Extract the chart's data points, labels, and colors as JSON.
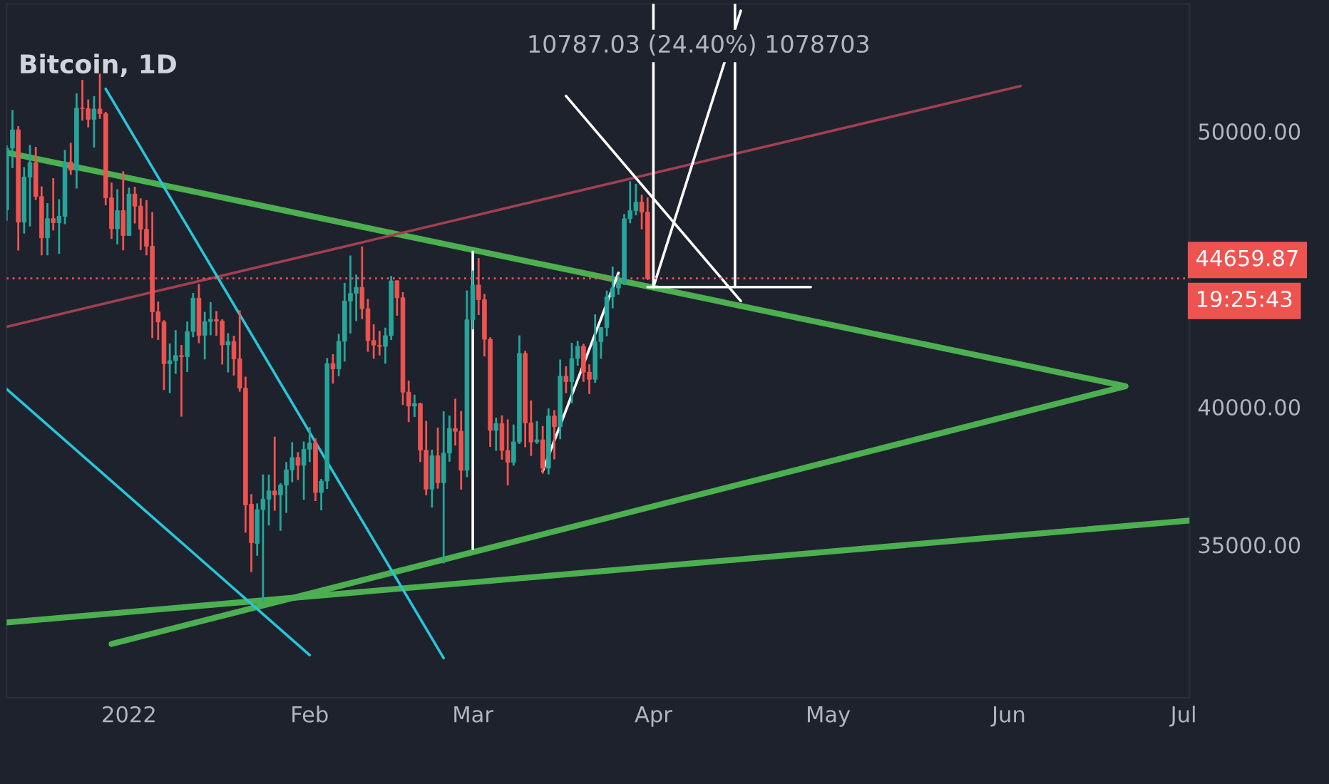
{
  "chart_data": {
    "type": "candlestick",
    "title": "Bitcoin, 1D",
    "x": [
      "2021-12-11",
      "2021-12-12",
      "2021-12-13",
      "2021-12-14",
      "2021-12-15",
      "2021-12-16",
      "2021-12-17",
      "2021-12-18",
      "2021-12-19",
      "2021-12-20",
      "2021-12-21",
      "2021-12-22",
      "2021-12-23",
      "2021-12-24",
      "2021-12-25",
      "2021-12-26",
      "2021-12-27",
      "2021-12-28",
      "2021-12-29",
      "2021-12-30",
      "2021-12-31",
      "2022-01-01",
      "2022-01-02",
      "2022-01-03",
      "2022-01-04",
      "2022-01-05",
      "2022-01-06",
      "2022-01-07",
      "2022-01-08",
      "2022-01-09",
      "2022-01-10",
      "2022-01-11",
      "2022-01-12",
      "2022-01-13",
      "2022-01-14",
      "2022-01-15",
      "2022-01-16",
      "2022-01-17",
      "2022-01-18",
      "2022-01-19",
      "2022-01-20",
      "2022-01-21",
      "2022-01-22",
      "2022-01-23",
      "2022-01-24",
      "2022-01-25",
      "2022-01-26",
      "2022-01-27",
      "2022-01-28",
      "2022-01-29",
      "2022-01-30",
      "2022-01-31",
      "2022-02-01",
      "2022-02-02",
      "2022-02-03",
      "2022-02-04",
      "2022-02-05",
      "2022-02-06",
      "2022-02-07",
      "2022-02-08",
      "2022-02-09",
      "2022-02-10",
      "2022-02-11",
      "2022-02-12",
      "2022-02-13",
      "2022-02-14",
      "2022-02-15",
      "2022-02-16",
      "2022-02-17",
      "2022-02-18",
      "2022-02-19",
      "2022-02-20",
      "2022-02-21",
      "2022-02-22",
      "2022-02-23",
      "2022-02-24",
      "2022-02-25",
      "2022-02-26",
      "2022-02-27",
      "2022-02-28",
      "2022-03-01",
      "2022-03-02",
      "2022-03-03",
      "2022-03-04",
      "2022-03-05",
      "2022-03-06",
      "2022-03-07",
      "2022-03-08",
      "2022-03-09",
      "2022-03-10",
      "2022-03-11",
      "2022-03-12",
      "2022-03-13",
      "2022-03-14",
      "2022-03-15",
      "2022-03-16",
      "2022-03-17",
      "2022-03-18",
      "2022-03-19",
      "2022-03-20",
      "2022-03-21",
      "2022-03-22",
      "2022-03-23",
      "2022-03-24",
      "2022-03-25",
      "2022-03-26",
      "2022-03-27",
      "2022-03-28",
      "2022-03-29",
      "2022-03-30",
      "2022-03-31"
    ],
    "ohlc": [
      [
        47150,
        49485,
        46751,
        49389
      ],
      [
        49389,
        50775,
        48666,
        50053
      ],
      [
        50053,
        50189,
        45672,
        46702
      ],
      [
        46702,
        48700,
        46290,
        48343
      ],
      [
        48336,
        49500,
        46547,
        48864
      ],
      [
        48864,
        49436,
        47511,
        47632
      ],
      [
        47632,
        48004,
        45500,
        46131
      ],
      [
        46134,
        47392,
        45500,
        46834
      ],
      [
        46834,
        48300,
        46406,
        46681
      ],
      [
        46681,
        47537,
        45558,
        46914
      ],
      [
        46914,
        49328,
        46630,
        48889
      ],
      [
        48887,
        49576,
        48421,
        48588
      ],
      [
        48588,
        51375,
        47921,
        50838
      ],
      [
        50839,
        51869,
        50387,
        50821
      ],
      [
        50820,
        51156,
        50142,
        50429
      ],
      [
        50429,
        51281,
        49412,
        50809
      ],
      [
        50809,
        52088,
        50449,
        50640
      ],
      [
        50640,
        50704,
        47313,
        47588
      ],
      [
        47588,
        48139,
        46096,
        46464
      ],
      [
        46464,
        47900,
        45900,
        47120
      ],
      [
        47121,
        48548,
        45678,
        46216
      ],
      [
        46216,
        47954,
        46208,
        47722
      ],
      [
        47722,
        47990,
        46654,
        47286
      ],
      [
        47286,
        47570,
        45696,
        46446
      ],
      [
        46446,
        47505,
        45502,
        45832
      ],
      [
        45832,
        47070,
        42500,
        43451
      ],
      [
        43451,
        43816,
        42430,
        43082
      ],
      [
        43082,
        43145,
        40611,
        41566
      ],
      [
        41566,
        42300,
        40501,
        41679
      ],
      [
        41680,
        42786,
        41200,
        41864
      ],
      [
        41864,
        42248,
        39650,
        41822
      ],
      [
        41822,
        43100,
        41268,
        42736
      ],
      [
        42736,
        44135,
        42528,
        43946
      ],
      [
        43946,
        44460,
        42311,
        42592
      ],
      [
        42598,
        43448,
        41725,
        43099
      ],
      [
        43099,
        43800,
        42600,
        43177
      ],
      [
        43172,
        43475,
        42581,
        43113
      ],
      [
        43118,
        43180,
        41540,
        42250
      ],
      [
        42250,
        42676,
        41252,
        42375
      ],
      [
        42374,
        42584,
        41138,
        41744
      ],
      [
        41745,
        43505,
        40553,
        40680
      ],
      [
        40680,
        41100,
        35440,
        36445
      ],
      [
        36471,
        36835,
        34008,
        35071
      ],
      [
        35048,
        36500,
        34601,
        36276
      ],
      [
        36276,
        37550,
        32917,
        36654
      ],
      [
        36654,
        37545,
        35701,
        36954
      ],
      [
        36950,
        38919,
        36234,
        36809
      ],
      [
        36807,
        37234,
        35507,
        37160
      ],
      [
        37161,
        38000,
        36155,
        37716
      ],
      [
        37716,
        38720,
        37268,
        38166
      ],
      [
        38166,
        38359,
        37351,
        37881
      ],
      [
        37881,
        38744,
        36632,
        38466
      ],
      [
        38466,
        39265,
        38000,
        38694
      ],
      [
        38694,
        38855,
        36586,
        36896
      ],
      [
        36897,
        37387,
        36250,
        37311
      ],
      [
        37310,
        41772,
        37026,
        41574
      ],
      [
        41575,
        41913,
        40843,
        41382
      ],
      [
        41382,
        42656,
        41116,
        42380
      ],
      [
        42380,
        44500,
        41645,
        43840
      ],
      [
        43840,
        45492,
        42666,
        44118
      ],
      [
        44118,
        44799,
        43117,
        44338
      ],
      [
        44338,
        45821,
        43187,
        43565
      ],
      [
        43565,
        43920,
        42000,
        42407
      ],
      [
        42408,
        43000,
        41748,
        42244
      ],
      [
        42236,
        42760,
        41870,
        42197
      ],
      [
        42197,
        42876,
        41570,
        42586
      ],
      [
        42586,
        44751,
        42428,
        44575
      ],
      [
        44579,
        44585,
        43310,
        43961
      ],
      [
        43961,
        44164,
        40073,
        40538
      ],
      [
        40538,
        40959,
        39450,
        40030
      ],
      [
        40031,
        40444,
        39639,
        40122
      ],
      [
        40118,
        40150,
        38000,
        38431
      ],
      [
        38431,
        39494,
        36800,
        37017
      ],
      [
        37017,
        38450,
        36350,
        38230
      ],
      [
        38231,
        39249,
        37036,
        37250
      ],
      [
        37251,
        39843,
        34322,
        38327
      ],
      [
        38328,
        39683,
        38014,
        39219
      ],
      [
        39219,
        40300,
        38600,
        39116
      ],
      [
        39116,
        39855,
        37000,
        37700
      ],
      [
        37700,
        44225,
        37450,
        43160
      ],
      [
        43161,
        44950,
        42809,
        44421
      ],
      [
        44422,
        45400,
        43334,
        43892
      ],
      [
        43892,
        44102,
        41832,
        42455
      ],
      [
        42455,
        42527,
        38550,
        39148
      ],
      [
        39148,
        39613,
        38407,
        39398
      ],
      [
        39398,
        39693,
        38088,
        38420
      ],
      [
        38420,
        39547,
        37155,
        37988
      ],
      [
        37988,
        39362,
        37867,
        38731
      ],
      [
        38731,
        42594,
        38656,
        41941
      ],
      [
        41942,
        42039,
        38539,
        39422
      ],
      [
        39422,
        40236,
        38223,
        38730
      ],
      [
        38730,
        39486,
        38660,
        38807
      ],
      [
        38807,
        39310,
        37578,
        37777
      ],
      [
        37778,
        39947,
        37555,
        39671
      ],
      [
        39672,
        39887,
        38098,
        39280
      ],
      [
        39280,
        41718,
        38828,
        41114
      ],
      [
        41114,
        41478,
        40500,
        40917
      ],
      [
        40917,
        42325,
        40135,
        41757
      ],
      [
        41757,
        42400,
        41499,
        42201
      ],
      [
        42202,
        42296,
        40911,
        41262
      ],
      [
        41262,
        41544,
        40468,
        41002
      ],
      [
        41003,
        43361,
        40875,
        42364
      ],
      [
        42364,
        42893,
        41751,
        42882
      ],
      [
        42882,
        44220,
        42560,
        43991
      ],
      [
        43991,
        45094,
        43579,
        44313
      ],
      [
        44313,
        44792,
        44071,
        44511
      ],
      [
        44511,
        46999,
        44422,
        46827
      ],
      [
        46828,
        48190,
        46663,
        47122
      ],
      [
        47123,
        48096,
        46950,
        47434
      ],
      [
        47434,
        47700,
        46445,
        47067
      ],
      [
        47067,
        47600,
        44600,
        44659.87
      ]
    ],
    "series": [
      {
        "type": "line",
        "x": [
          "2021-12-11",
          "2022-06-21"
        ],
        "values": [
          49230,
          40750
        ],
        "color": "#4caf50"
      },
      {
        "type": "line",
        "x": [
          "2021-12-29",
          "2022-06-21"
        ],
        "values": [
          31400,
          40750
        ],
        "color": "#4caf50"
      },
      {
        "type": "line",
        "x": [
          "2021-12-11",
          "2022-07-02"
        ],
        "values": [
          32180,
          35880
        ],
        "color": "#4caf50"
      },
      {
        "type": "line",
        "x": [
          "2021-12-11",
          "2022-06-03"
        ],
        "values": [
          42910,
          51640
        ],
        "color": "#a04050"
      },
      {
        "type": "line",
        "x": [
          "2021-12-28",
          "2022-02-24"
        ],
        "values": [
          51540,
          30890
        ],
        "color": "#26c6da"
      },
      {
        "type": "line",
        "x": [
          "2021-12-11",
          "2022-02-01"
        ],
        "values": [
          40650,
          31000
        ],
        "color": "#26c6da"
      },
      {
        "type": "line",
        "x": [
          "2022-03-13",
          "2022-03-26"
        ],
        "values": [
          37670,
          44860
        ],
        "color": "#ffffff"
      },
      {
        "type": "line",
        "x": [
          "2022-04-01",
          "2022-04-16"
        ],
        "values": [
          44350,
          54370
        ],
        "color": "#ffffff"
      },
      {
        "type": "line",
        "x": [
          "2022-03-31",
          "2022-04-28"
        ],
        "values": [
          44350,
          44350
        ],
        "color": "#ffffff"
      },
      {
        "type": "line",
        "x": [
          "2022-03-17",
          "2022-04-16"
        ],
        "values": [
          51280,
          43840
        ],
        "color": "#ffffff"
      },
      {
        "type": "line",
        "x": [
          "2022-04-01",
          "2022-04-01"
        ],
        "values": [
          44350,
          54620
        ],
        "color": "#ffffff"
      },
      {
        "type": "line",
        "x": [
          "2022-04-15",
          "2022-04-15"
        ],
        "values": [
          44350,
          54620
        ],
        "color": "#ffffff"
      },
      {
        "type": "line",
        "x": [
          "2022-03-01",
          "2022-03-01"
        ],
        "values": [
          45630,
          34850
        ],
        "color": "#ffffff"
      }
    ],
    "ref_lines": [
      {
        "axis": "y",
        "value": 44659.87,
        "label": "44659.87",
        "color": "#ef5350",
        "line_style": "dotted"
      }
    ],
    "annotations": [
      "10787.03 (24.40%) 1078703",
      "19:25:43"
    ],
    "xlim": [
      "2021-12-11",
      "2022-07-02"
    ],
    "xticks": [
      {
        "value": "2022-01-01",
        "label": "2022"
      },
      {
        "value": "2022-02-01",
        "label": "Feb"
      },
      {
        "value": "2022-03-01",
        "label": "Mar"
      },
      {
        "value": "2022-04-01",
        "label": "Apr"
      },
      {
        "value": "2022-05-01",
        "label": "May"
      },
      {
        "value": "2022-06-01",
        "label": "Jun"
      },
      {
        "value": "2022-07-01",
        "label": "Jul"
      }
    ],
    "ylim": [
      29450,
      54620
    ],
    "yticks": [
      {
        "value": 35000,
        "label": "35000.00"
      },
      {
        "value": 40000,
        "label": "40000.00"
      },
      {
        "value": 50000,
        "label": "50000.00"
      }
    ],
    "grid": false,
    "legend": false
  }
}
